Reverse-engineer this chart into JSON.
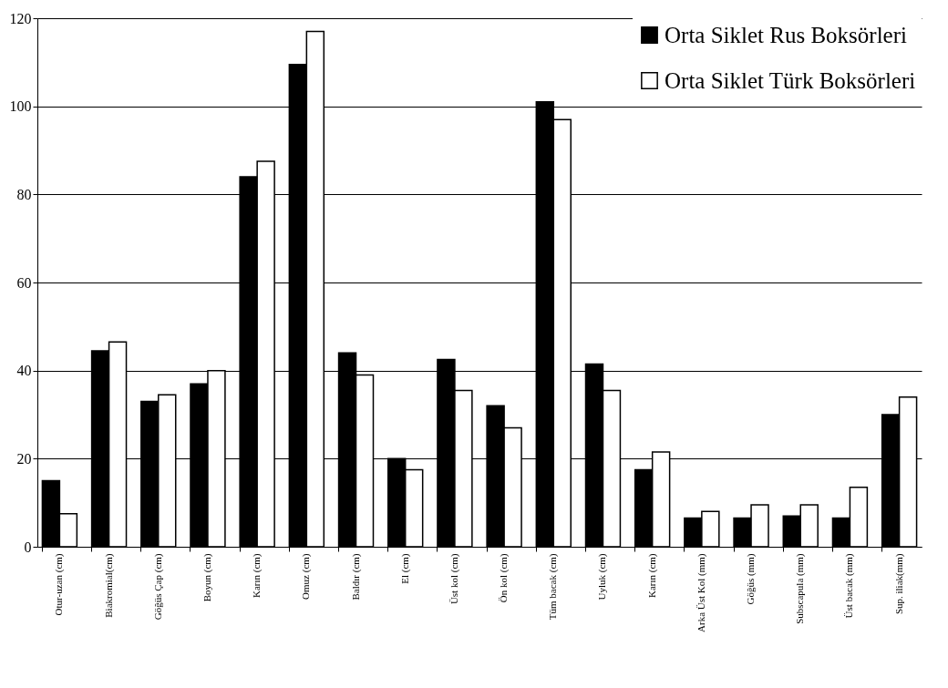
{
  "chart_data": {
    "type": "bar",
    "categories": [
      "Otur-uzan (cm)",
      "Biakromial(cm)",
      "Göğüs Çap (cm)",
      "Boyun (cm)",
      "Karın (cm)",
      "Omuz (cm)",
      "Baldır (cm)",
      "El (cm)",
      "Üst kol (cm)",
      "Ön kol (cm)",
      "Tüm bacak (cm)",
      "Uyluk (cm)",
      "Karın (cm)",
      "Arka Üst Kol (mm)",
      "Göğüs (mm)",
      "Subscapula (mm)",
      "Üst bacak (mm)",
      "Sup. iliak(mm)"
    ],
    "series": [
      {
        "name": "Orta Siklet Rus Boksörleri",
        "color": "#000000",
        "values": [
          15,
          44.5,
          33,
          37,
          84,
          109.5,
          44,
          20,
          42.5,
          32,
          101,
          41.5,
          17.5,
          6.5,
          6.5,
          7,
          6.5,
          30
        ]
      },
      {
        "name": "Orta Siklet Türk Boksörleri",
        "color": "#ffffff",
        "values": [
          7.5,
          46.5,
          34.5,
          40,
          87.5,
          117,
          39,
          17.5,
          35.5,
          27,
          97,
          35.5,
          21.5,
          8,
          9.5,
          9.5,
          13.5,
          34
        ]
      }
    ],
    "ylim": [
      0,
      120
    ],
    "yticks": [
      0,
      20,
      40,
      60,
      80,
      100,
      120
    ],
    "grid": "y",
    "legend": "top right"
  }
}
